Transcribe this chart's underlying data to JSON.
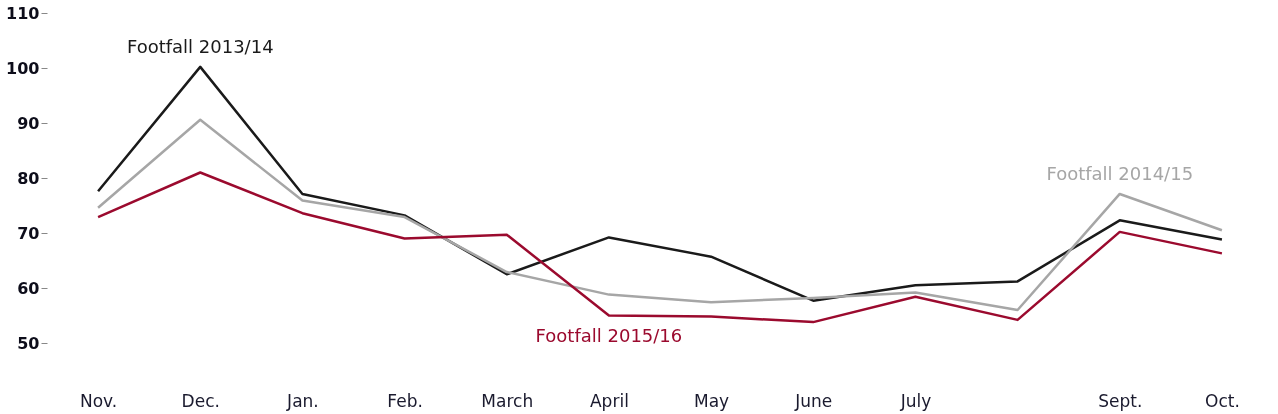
{
  "chart_data": {
    "type": "line",
    "categories": [
      "Nov.",
      "Dec.",
      "Jan.",
      "Feb.",
      "March",
      "April",
      "May",
      "June",
      "July",
      null,
      "Sept.",
      "Oct."
    ],
    "series": [
      {
        "name": "Footfall 2013/14",
        "color": "#1a1a1a",
        "values": [
          77.6,
          100.2,
          77.1,
          73.2,
          62.5,
          69.2,
          65.7,
          57.7,
          60.5,
          61.2,
          72.3,
          68.8
        ]
      },
      {
        "name": "Footfall 2014/15",
        "color": "#a6a6a6",
        "values": [
          74.6,
          90.6,
          75.9,
          72.9,
          62.9,
          58.8,
          57.4,
          58.2,
          59.2,
          56.0,
          77.1,
          70.5
        ]
      },
      {
        "name": "Footfall 2015/16",
        "color": "#9b0a2e",
        "values": [
          72.9,
          81.0,
          73.6,
          69.0,
          69.7,
          55.0,
          54.8,
          53.8,
          58.4,
          54.2,
          70.2,
          66.3
        ]
      }
    ],
    "ylim": [
      50,
      110
    ],
    "yticks": [
      50,
      60,
      70,
      80,
      90,
      100,
      110
    ],
    "grid": false,
    "legend": false,
    "marker": "none",
    "line_style": "solid"
  }
}
